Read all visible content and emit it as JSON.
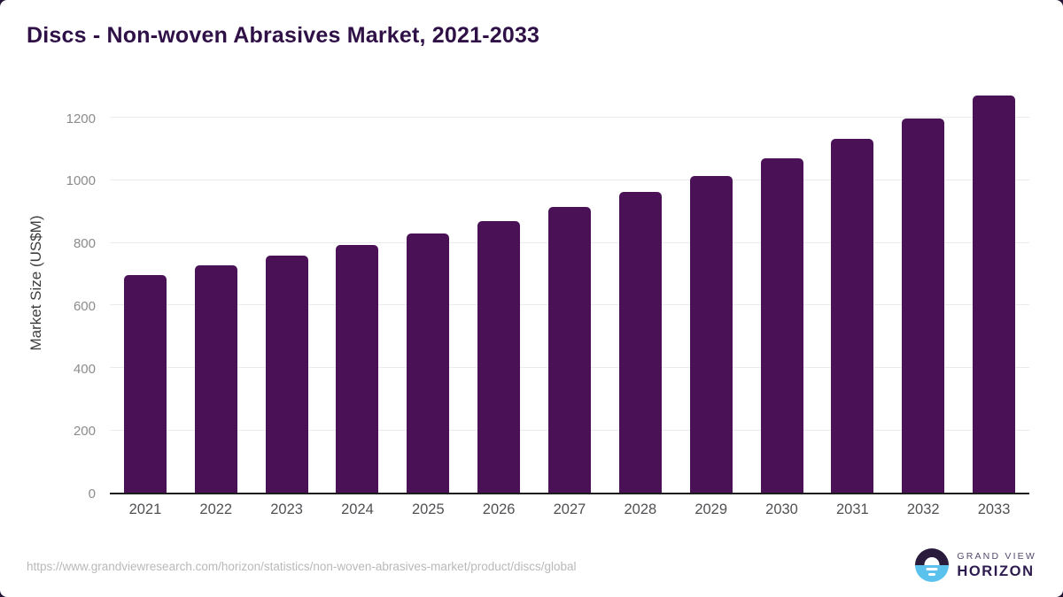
{
  "title": "Discs - Non-woven Abrasives Market, 2021-2033",
  "chart_data": {
    "type": "bar",
    "title": "Discs - Non-woven Abrasives Market, 2021-2033",
    "categories": [
      "2021",
      "2022",
      "2023",
      "2024",
      "2025",
      "2026",
      "2027",
      "2028",
      "2029",
      "2030",
      "2031",
      "2032",
      "2033"
    ],
    "values": [
      695,
      727,
      757,
      792,
      829,
      869,
      912,
      960,
      1012,
      1068,
      1130,
      1196,
      1268
    ],
    "xlabel": "",
    "ylabel": "Market Size (US$M)",
    "ylim": [
      0,
      1300
    ],
    "yticks": [
      0,
      200,
      400,
      600,
      800,
      1000,
      1200
    ],
    "grid": true,
    "legend": "none",
    "bar_color": "#4A1157"
  },
  "colors": {
    "bar": "#4A1157",
    "title_text": "#2F1147",
    "gridline": "#ebebee",
    "axis_line": "#1c1c1c",
    "ytick_text": "#8b8b8e",
    "xtick_text": "#515155",
    "url_text": "#b9b9b9",
    "logo_dark": "#2A1B3D",
    "logo_blue": "#5BC2EE"
  },
  "footer": {
    "source_url": "https://www.grandviewresearch.com/horizon/statistics/non-woven-abrasives-market/product/discs/global",
    "brand_line1": "GRAND VIEW",
    "brand_line2": "HORIZON"
  }
}
